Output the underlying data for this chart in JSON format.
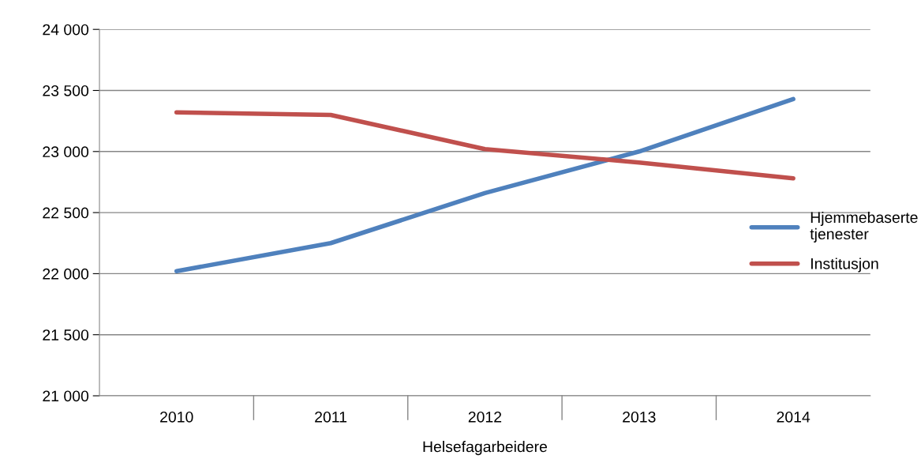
{
  "chart_data": {
    "type": "line",
    "xlabel": "Helsefagarbeidere",
    "categories": [
      "2010",
      "2011",
      "2012",
      "2013",
      "2014"
    ],
    "series": [
      {
        "name": "Hjemmebaserte tjenester",
        "color": "#4f81bd",
        "values": [
          22020,
          22250,
          22660,
          23000,
          23430
        ]
      },
      {
        "name": "Institusjon",
        "color": "#c0504d",
        "values": [
          23320,
          23300,
          23020,
          22910,
          22780
        ]
      }
    ],
    "ylim": [
      21000,
      24000
    ],
    "yticks": [
      {
        "value": 21000,
        "label": "21 000"
      },
      {
        "value": 21500,
        "label": "21 500"
      },
      {
        "value": 22000,
        "label": "22 000"
      },
      {
        "value": 22500,
        "label": "22 500"
      },
      {
        "value": 23000,
        "label": "23 000"
      },
      {
        "value": 23500,
        "label": "23 500"
      },
      {
        "value": 24000,
        "label": "24 000"
      }
    ],
    "grid": "y",
    "legend": "right",
    "marker": "none",
    "line_style": "solid"
  }
}
